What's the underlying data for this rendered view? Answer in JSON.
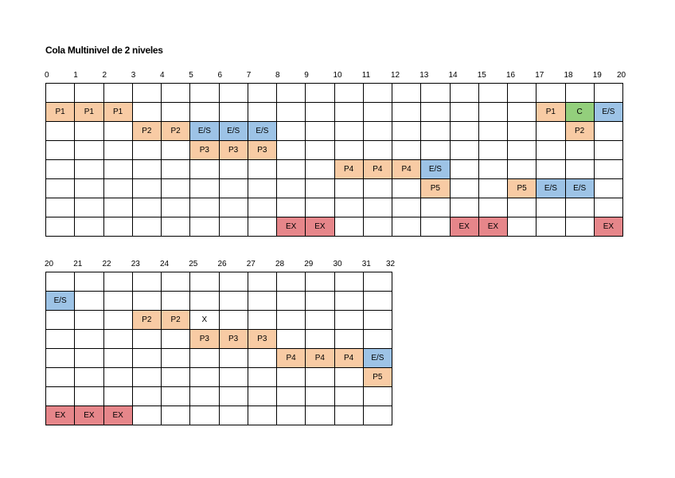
{
  "title": "Cola Multinivel de 2 niveles",
  "grids": [
    {
      "ticks": [
        0,
        1,
        2,
        3,
        4,
        5,
        6,
        7,
        8,
        9,
        10,
        11,
        12,
        13,
        14,
        15,
        16,
        17,
        18,
        19,
        20
      ],
      "rows": [
        [
          null,
          null,
          null,
          null,
          null,
          null,
          null,
          null,
          null,
          null,
          null,
          null,
          null,
          null,
          null,
          null,
          null,
          null,
          null,
          null
        ],
        [
          {
            "text": "P1",
            "color": "#f8cba4"
          },
          {
            "text": "P1",
            "color": "#f8cba4"
          },
          {
            "text": "P1",
            "color": "#f8cba4"
          },
          null,
          null,
          null,
          null,
          null,
          null,
          null,
          null,
          null,
          null,
          null,
          null,
          null,
          null,
          {
            "text": "P1",
            "color": "#f8cba4"
          },
          {
            "text": "C",
            "color": "#93cf7c"
          },
          {
            "text": "E/S",
            "color": "#9dc3e6"
          }
        ],
        [
          null,
          null,
          null,
          {
            "text": "P2",
            "color": "#f8cba4"
          },
          {
            "text": "P2",
            "color": "#f8cba4"
          },
          {
            "text": "E/S",
            "color": "#9dc3e6"
          },
          {
            "text": "E/S",
            "color": "#9dc3e6"
          },
          {
            "text": "E/S",
            "color": "#9dc3e6"
          },
          null,
          null,
          null,
          null,
          null,
          null,
          null,
          null,
          null,
          null,
          {
            "text": "P2",
            "color": "#f8cba4"
          },
          null
        ],
        [
          null,
          null,
          null,
          null,
          null,
          {
            "text": "P3",
            "color": "#f8cba4"
          },
          {
            "text": "P3",
            "color": "#f8cba4"
          },
          {
            "text": "P3",
            "color": "#f8cba4"
          },
          null,
          null,
          null,
          null,
          null,
          null,
          null,
          null,
          null,
          null,
          null,
          null
        ],
        [
          null,
          null,
          null,
          null,
          null,
          null,
          null,
          null,
          null,
          null,
          {
            "text": "P4",
            "color": "#f8cba4"
          },
          {
            "text": "P4",
            "color": "#f8cba4"
          },
          {
            "text": "P4",
            "color": "#f8cba4"
          },
          {
            "text": "E/S",
            "color": "#9dc3e6"
          },
          null,
          null,
          null,
          null,
          null,
          null
        ],
        [
          null,
          null,
          null,
          null,
          null,
          null,
          null,
          null,
          null,
          null,
          null,
          null,
          null,
          {
            "text": "P5",
            "color": "#f8cba4"
          },
          null,
          null,
          {
            "text": "P5",
            "color": "#f8cba4"
          },
          {
            "text": "E/S",
            "color": "#9dc3e6"
          },
          {
            "text": "E/S",
            "color": "#9dc3e6"
          },
          null
        ],
        [
          null,
          null,
          null,
          null,
          null,
          null,
          null,
          null,
          null,
          null,
          null,
          null,
          null,
          null,
          null,
          null,
          null,
          null,
          null,
          null
        ],
        [
          null,
          null,
          null,
          null,
          null,
          null,
          null,
          null,
          {
            "text": "EX",
            "color": "#e6868a"
          },
          {
            "text": "EX",
            "color": "#e6868a"
          },
          null,
          null,
          null,
          null,
          {
            "text": "EX",
            "color": "#e6868a"
          },
          {
            "text": "EX",
            "color": "#e6868a"
          },
          null,
          null,
          null,
          {
            "text": "EX",
            "color": "#e6868a"
          }
        ]
      ]
    },
    {
      "ticks": [
        20,
        21,
        22,
        23,
        24,
        25,
        26,
        27,
        28,
        29,
        30,
        31,
        32
      ],
      "rows": [
        [
          null,
          null,
          null,
          null,
          null,
          null,
          null,
          null,
          null,
          null,
          null,
          null
        ],
        [
          {
            "text": "E/S",
            "color": "#9dc3e6"
          },
          null,
          null,
          null,
          null,
          null,
          null,
          null,
          null,
          null,
          null,
          null
        ],
        [
          null,
          null,
          null,
          {
            "text": "P2",
            "color": "#f8cba4"
          },
          {
            "text": "P2",
            "color": "#f8cba4"
          },
          {
            "text": "X"
          },
          null,
          null,
          null,
          null,
          null,
          null
        ],
        [
          null,
          null,
          null,
          null,
          null,
          {
            "text": "P3",
            "color": "#f8cba4"
          },
          {
            "text": "P3",
            "color": "#f8cba4"
          },
          {
            "text": "P3",
            "color": "#f8cba4"
          },
          null,
          null,
          null,
          null
        ],
        [
          null,
          null,
          null,
          null,
          null,
          null,
          null,
          null,
          {
            "text": "P4",
            "color": "#f8cba4"
          },
          {
            "text": "P4",
            "color": "#f8cba4"
          },
          {
            "text": "P4",
            "color": "#f8cba4"
          },
          {
            "text": "E/S",
            "color": "#9dc3e6"
          }
        ],
        [
          null,
          null,
          null,
          null,
          null,
          null,
          null,
          null,
          null,
          null,
          null,
          {
            "text": "P5",
            "color": "#f8cba4"
          }
        ],
        [
          null,
          null,
          null,
          null,
          null,
          null,
          null,
          null,
          null,
          null,
          null,
          null
        ],
        [
          {
            "text": "EX",
            "color": "#e6868a"
          },
          {
            "text": "EX",
            "color": "#e6868a"
          },
          {
            "text": "EX",
            "color": "#e6868a"
          },
          null,
          null,
          null,
          null,
          null,
          null,
          null,
          null,
          null
        ]
      ]
    }
  ]
}
